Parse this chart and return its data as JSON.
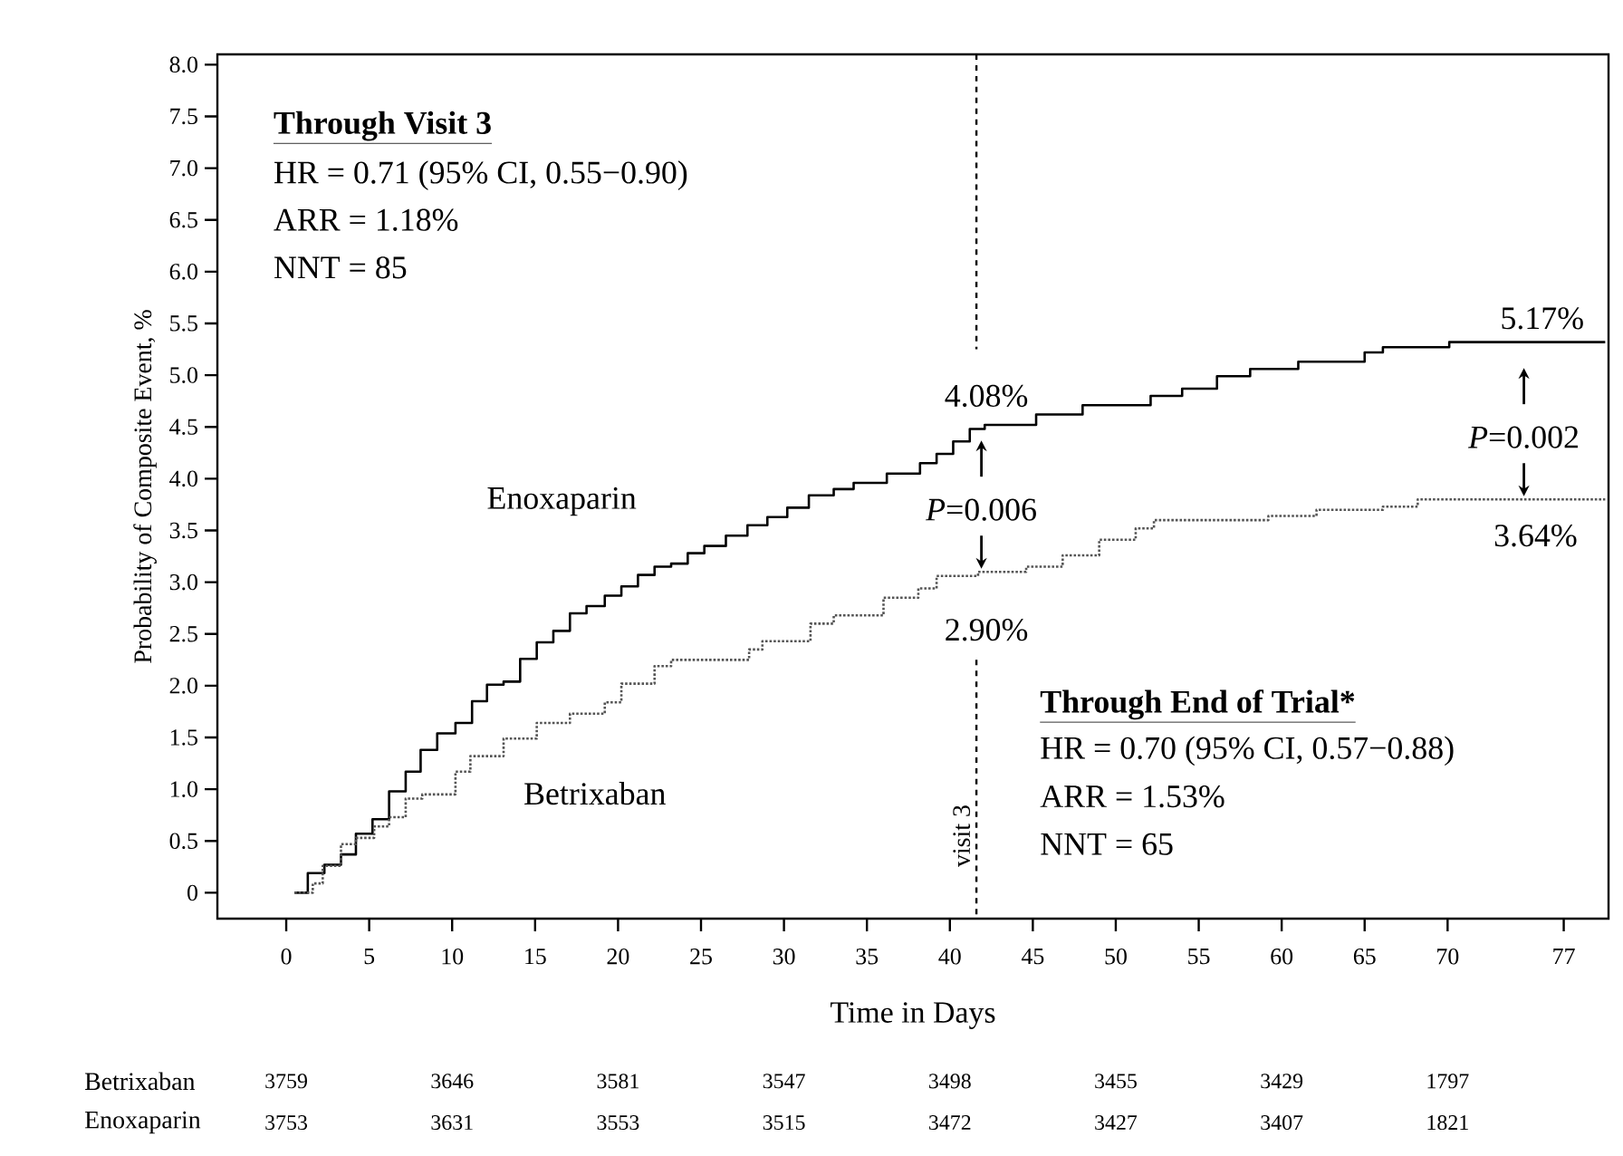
{
  "chart_data": {
    "type": "step",
    "xlabel": "Time in Days",
    "ylabel": "Probability of Composite Event, %",
    "xlim": [
      -4.15,
      79.7
    ],
    "ylim": [
      -0.25,
      8.1
    ],
    "xticks": [
      0,
      5,
      10,
      15,
      20,
      25,
      30,
      35,
      40,
      45,
      50,
      55,
      60,
      65,
      70,
      77
    ],
    "yticks": [
      {
        "value": 0,
        "label": "0"
      },
      {
        "value": 0.5,
        "label": "0.5"
      },
      {
        "value": 1,
        "label": "1.0"
      },
      {
        "value": 1.5,
        "label": "1.5"
      },
      {
        "value": 2,
        "label": "2.0"
      },
      {
        "value": 2.5,
        "label": "2.5"
      },
      {
        "value": 3,
        "label": "3.0"
      },
      {
        "value": 3.5,
        "label": "3.5"
      },
      {
        "value": 4,
        "label": "4.0"
      },
      {
        "value": 4.5,
        "label": "4.5"
      },
      {
        "value": 5,
        "label": "5.0"
      },
      {
        "value": 5.5,
        "label": "5.5"
      },
      {
        "value": 6,
        "label": "6.0"
      },
      {
        "value": 6.5,
        "label": "6.5"
      },
      {
        "value": 7,
        "label": "7.0"
      },
      {
        "value": 7.5,
        "label": "7.5"
      },
      {
        "value": 8,
        "label": "8.0"
      }
    ],
    "series": [
      {
        "name": "Enoxaparin",
        "color": "#000000",
        "line_style": "solid",
        "x": [
          0.5,
          1.3,
          2.3,
          3.3,
          4.2,
          5.2,
          6.2,
          7.2,
          8.1,
          9.1,
          10.2,
          11.2,
          12.1,
          13.1,
          14.1,
          15.1,
          16.1,
          17.1,
          18.1,
          19.2,
          20.2,
          21.2,
          22.2,
          23.2,
          24.2,
          25.2,
          26.5,
          27.8,
          29,
          30.2,
          31.5,
          33,
          34.2,
          36.2,
          38.2,
          39.2,
          40.2,
          41.2,
          42.1,
          45.2,
          48,
          52.1,
          54,
          56.1,
          58.1,
          61,
          65,
          66.1,
          70.1,
          79.5
        ],
        "values": [
          0,
          0.19,
          0.27,
          0.37,
          0.57,
          0.71,
          0.98,
          1.17,
          1.38,
          1.54,
          1.64,
          1.85,
          2.01,
          2.04,
          2.26,
          2.42,
          2.53,
          2.7,
          2.77,
          2.87,
          2.96,
          3.07,
          3.15,
          3.18,
          3.28,
          3.35,
          3.45,
          3.55,
          3.63,
          3.72,
          3.84,
          3.9,
          3.96,
          4.05,
          4.15,
          4.24,
          4.36,
          4.48,
          4.52,
          4.62,
          4.71,
          4.8,
          4.87,
          4.99,
          5.06,
          5.13,
          5.22,
          5.27,
          5.32,
          5.32
        ]
      },
      {
        "name": "Betrixaban",
        "color": "#555555",
        "line_style": "dotted",
        "x": [
          0.5,
          1.6,
          2.2,
          3.3,
          4.2,
          5.3,
          6.2,
          7.2,
          8.2,
          10.2,
          11.1,
          13.1,
          15.1,
          17.1,
          19.2,
          20.2,
          22.2,
          23.2,
          27.9,
          28.7,
          31.6,
          33,
          36,
          38.1,
          39.2,
          41.7,
          44.6,
          46.8,
          49,
          51.2,
          52.3,
          59.2,
          62.1,
          66.1,
          68.2,
          79.5
        ],
        "values": [
          0,
          0.09,
          0.26,
          0.47,
          0.53,
          0.64,
          0.73,
          0.91,
          0.95,
          1.17,
          1.32,
          1.49,
          1.64,
          1.73,
          1.84,
          2.02,
          2.19,
          2.25,
          2.35,
          2.43,
          2.6,
          2.68,
          2.85,
          2.94,
          3.06,
          3.1,
          3.15,
          3.26,
          3.41,
          3.52,
          3.6,
          3.64,
          3.7,
          3.73,
          3.8,
          3.8
        ]
      }
    ],
    "ref_lines": [
      {
        "axis": "x",
        "value": 41.6,
        "label": "visit 3",
        "line_style": "dashed"
      }
    ],
    "annotations": [
      "Through Visit 3",
      "HR = 0.71 (95% CI, 0.55−0.90)",
      "ARR = 1.18%",
      "NNT = 85",
      "Through End of Trial*",
      "HR = 0.70 (95% CI, 0.57−0.88)",
      "ARR = 1.53%",
      "NNT = 65",
      "4.08%",
      {
        "text": "*P*=0.006",
        "x": 41.9,
        "y": 3.1
      },
      "2.90%",
      "5.17%",
      {
        "text": "*P*=0.002",
        "x": 74.6,
        "y": 3.8
      },
      "3.64%",
      "Betrixaban",
      "3759",
      "3646",
      "3581",
      "3547",
      "3498",
      "3455",
      "3429",
      "1797",
      "Enoxaparin",
      "3753",
      "3631",
      "3553",
      "3515",
      "3472",
      "3427",
      "3407",
      "1821"
    ]
  }
}
